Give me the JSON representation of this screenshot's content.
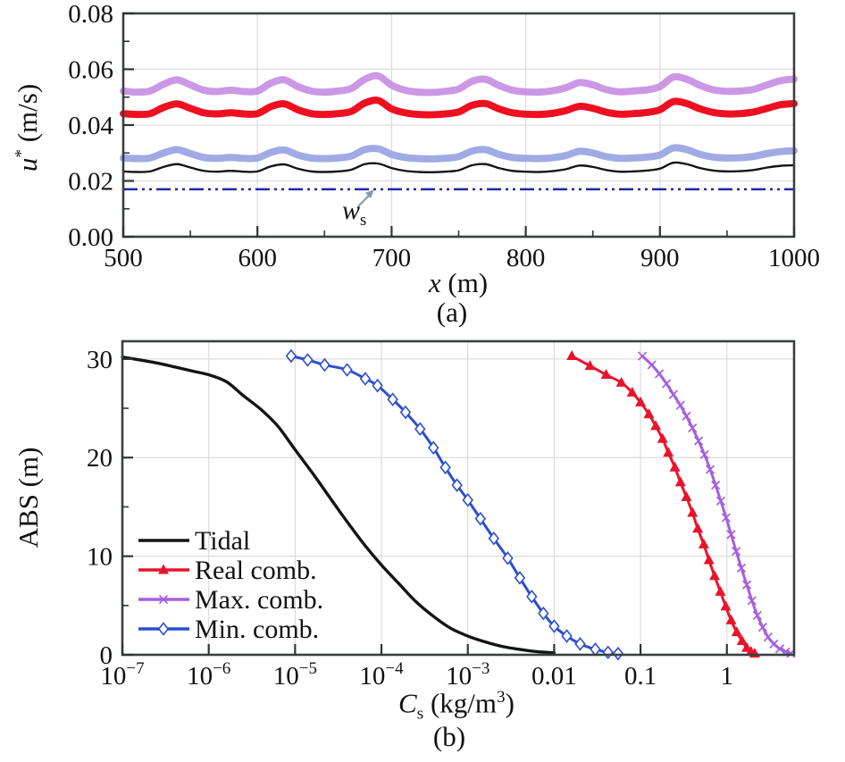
{
  "figure": {
    "background": "#ffffff",
    "panel_a": {
      "caption": "(a)",
      "ylabel": {
        "sym": "u",
        "sup": "*",
        "unit": " (m/s)"
      },
      "xlabel": {
        "sym": "x",
        "unit": " (m)"
      },
      "annotation": {
        "sym": "w",
        "sub": "s"
      }
    },
    "panel_b": {
      "caption": "(b)",
      "ylabel": {
        "text": "ABS (m)"
      },
      "xlabel": {
        "sym": "C",
        "sub": "s",
        "unit_pre": " (kg/m",
        "unit_sup": "3",
        "unit_post": ")"
      }
    }
  },
  "chart_data": [
    {
      "id": "a",
      "type": "line",
      "xscale": "linear",
      "xlabel": "x (m)",
      "ylabel": "u* (m/s)",
      "caption": "(a)",
      "xlim": [
        500,
        1000
      ],
      "ylim": [
        0,
        0.08
      ],
      "xticks": [
        500,
        600,
        700,
        800,
        900,
        1000
      ],
      "xtick_labels": [
        "500",
        "600",
        "700",
        "800",
        "900",
        "1000"
      ],
      "xminor": [
        550,
        650,
        750,
        850,
        950
      ],
      "yticks": [
        0,
        0.02,
        0.04,
        0.06,
        0.08
      ],
      "ytick_labels": [
        "0.00",
        "0.02",
        "0.04",
        "0.06",
        "0.08"
      ],
      "yminor": [
        0.01,
        0.03,
        0.05,
        0.07
      ],
      "grid": true,
      "x": {
        "start": 500,
        "step": 10,
        "count": 51
      },
      "series": [
        {
          "name": "Max. comb.",
          "color": "#c58ae3",
          "opacity": 0.88,
          "line_width": 8,
          "marker": "none",
          "values": [
            0.0522,
            0.0518,
            0.0522,
            0.0546,
            0.0562,
            0.0544,
            0.0525,
            0.052,
            0.0525,
            0.052,
            0.0522,
            0.055,
            0.0562,
            0.0538,
            0.0522,
            0.0518,
            0.0522,
            0.0531,
            0.0564,
            0.0576,
            0.0543,
            0.0525,
            0.0518,
            0.0517,
            0.0521,
            0.0529,
            0.0557,
            0.0564,
            0.0542,
            0.0525,
            0.0519,
            0.0518,
            0.0523,
            0.0534,
            0.0552,
            0.0544,
            0.0527,
            0.0519,
            0.0522,
            0.0526,
            0.0538,
            0.0572,
            0.0564,
            0.0542,
            0.0526,
            0.0521,
            0.0522,
            0.0528,
            0.0544,
            0.0559,
            0.0565
          ]
        },
        {
          "name": "Real comb.",
          "color": "#ee1021",
          "opacity": 1,
          "line_width": 8,
          "marker": "none",
          "values": [
            0.0441,
            0.0438,
            0.0441,
            0.0463,
            0.0476,
            0.046,
            0.0444,
            0.044,
            0.0444,
            0.044,
            0.0441,
            0.0466,
            0.0476,
            0.0455,
            0.0441,
            0.0438,
            0.0441,
            0.0449,
            0.0479,
            0.0488,
            0.0458,
            0.0444,
            0.0438,
            0.0437,
            0.044,
            0.0447,
            0.0471,
            0.0477,
            0.0458,
            0.0444,
            0.0439,
            0.0438,
            0.0442,
            0.0452,
            0.0467,
            0.046,
            0.0446,
            0.0439,
            0.0441,
            0.0445,
            0.0455,
            0.0484,
            0.0477,
            0.0458,
            0.0445,
            0.044,
            0.0441,
            0.0447,
            0.046,
            0.0473,
            0.0477
          ]
        },
        {
          "name": "Min. comb.",
          "color": "#98a3e2",
          "opacity": 0.92,
          "line_width": 8,
          "marker": "none",
          "values": [
            0.0282,
            0.028,
            0.0282,
            0.03,
            0.0312,
            0.0298,
            0.0284,
            0.0281,
            0.0284,
            0.0281,
            0.0282,
            0.0302,
            0.0311,
            0.0293,
            0.0282,
            0.028,
            0.0282,
            0.0289,
            0.0312,
            0.0315,
            0.0295,
            0.0284,
            0.028,
            0.0279,
            0.0281,
            0.0287,
            0.0307,
            0.0312,
            0.0295,
            0.0284,
            0.0281,
            0.028,
            0.0283,
            0.0291,
            0.0306,
            0.03,
            0.0287,
            0.0281,
            0.0282,
            0.0285,
            0.0293,
            0.0318,
            0.0312,
            0.0295,
            0.0285,
            0.0282,
            0.0283,
            0.0288,
            0.0298,
            0.0305,
            0.0308
          ]
        },
        {
          "name": "Tidal",
          "color": "#141414",
          "opacity": 1,
          "line_width": 2.4,
          "marker": "none",
          "values": [
            0.0234,
            0.0232,
            0.0234,
            0.025,
            0.026,
            0.0248,
            0.0236,
            0.0233,
            0.0236,
            0.0233,
            0.0234,
            0.0252,
            0.0259,
            0.0244,
            0.0234,
            0.0232,
            0.0234,
            0.024,
            0.026,
            0.0262,
            0.0246,
            0.0236,
            0.0232,
            0.0231,
            0.0233,
            0.0238,
            0.0256,
            0.026,
            0.0246,
            0.0236,
            0.0233,
            0.0232,
            0.0235,
            0.0242,
            0.0255,
            0.025,
            0.0239,
            0.0233,
            0.0234,
            0.0237,
            0.0244,
            0.0265,
            0.026,
            0.0246,
            0.0237,
            0.0234,
            0.0235,
            0.0239,
            0.0248,
            0.0254,
            0.0256
          ]
        }
      ],
      "refline": {
        "name": "ws",
        "value": 0.017,
        "color": "#2424ad",
        "dash": "dash-dot-dot"
      }
    },
    {
      "id": "b",
      "type": "line",
      "xscale": "log",
      "xlabel": "Cs (kg/m3)",
      "ylabel": "ABS (m)",
      "caption": "(b)",
      "xlim": [
        1e-07,
        6
      ],
      "ylim": [
        0,
        31.8
      ],
      "xticks": [
        1e-07,
        1e-06,
        1e-05,
        0.0001,
        0.001,
        0.01,
        0.1,
        1
      ],
      "xtick_labels": [
        "10^−7",
        "10^−6",
        "10^−5",
        "10^−4",
        "10^−3",
        "0.01",
        "0.1",
        "1"
      ],
      "yticks": [
        0,
        10,
        20,
        30
      ],
      "ytick_labels": [
        "0",
        "10",
        "20",
        "30"
      ],
      "yminor": [
        5,
        15,
        25
      ],
      "grid": true,
      "legend": {
        "position": "lower-left",
        "items": [
          "Tidal",
          "Real comb.",
          "Max. comb.",
          "Min. comb."
        ]
      },
      "series": [
        {
          "name": "Tidal",
          "color": "#141414",
          "line_width": 3.4,
          "marker": "none",
          "points": [
            [
              1e-07,
              30.2
            ],
            [
              1.6e-07,
              29.9
            ],
            [
              2.5e-07,
              29.6
            ],
            [
              4e-07,
              29.2
            ],
            [
              6.3e-07,
              28.8
            ],
            [
              1e-06,
              28.4
            ],
            [
              1.6e-06,
              27.7
            ],
            [
              2.5e-06,
              26.3
            ],
            [
              4e-06,
              24.9
            ],
            [
              6.3e-06,
              23.2
            ],
            [
              1e-05,
              20.8
            ],
            [
              1.6e-05,
              18.4
            ],
            [
              2.5e-05,
              16.0
            ],
            [
              4e-05,
              13.5
            ],
            [
              6.3e-05,
              11.2
            ],
            [
              0.0001,
              9.1
            ],
            [
              0.00016,
              7.2
            ],
            [
              0.00025,
              5.4
            ],
            [
              0.0004,
              3.9
            ],
            [
              0.00063,
              2.7
            ],
            [
              0.001,
              1.9
            ],
            [
              0.0016,
              1.3
            ],
            [
              0.0025,
              0.85
            ],
            [
              0.004,
              0.55
            ],
            [
              0.0063,
              0.32
            ],
            [
              0.01,
              0.2
            ]
          ]
        },
        {
          "name": "Real comb.",
          "color": "#e8142b",
          "line_width": 3,
          "marker": "triangle",
          "points": [
            [
              0.016,
              30.3
            ],
            [
              0.026,
              29.3
            ],
            [
              0.04,
              28.4
            ],
            [
              0.06,
              27.6
            ],
            [
              0.08,
              26.6
            ],
            [
              0.1,
              25.6
            ],
            [
              0.125,
              24.4
            ],
            [
              0.15,
              23.2
            ],
            [
              0.18,
              21.9
            ],
            [
              0.21,
              20.5
            ],
            [
              0.25,
              19.0
            ],
            [
              0.29,
              17.5
            ],
            [
              0.34,
              16.0
            ],
            [
              0.4,
              14.4
            ],
            [
              0.46,
              12.8
            ],
            [
              0.54,
              11.2
            ],
            [
              0.62,
              9.6
            ],
            [
              0.72,
              8.0
            ],
            [
              0.84,
              6.4
            ],
            [
              0.97,
              4.9
            ],
            [
              1.12,
              3.5
            ],
            [
              1.3,
              2.3
            ],
            [
              1.5,
              1.4
            ],
            [
              1.7,
              0.7
            ],
            [
              1.9,
              0.32
            ],
            [
              2.1,
              0.12
            ]
          ]
        },
        {
          "name": "Max. comb.",
          "color": "#a55ee0",
          "line_width": 3,
          "marker": "x",
          "points": [
            [
              0.105,
              30.3
            ],
            [
              0.135,
              29.4
            ],
            [
              0.165,
              28.5
            ],
            [
              0.2,
              27.5
            ],
            [
              0.24,
              26.4
            ],
            [
              0.29,
              25.3
            ],
            [
              0.34,
              24.2
            ],
            [
              0.4,
              23.0
            ],
            [
              0.47,
              21.7
            ],
            [
              0.55,
              20.3
            ],
            [
              0.64,
              18.8
            ],
            [
              0.74,
              17.2
            ],
            [
              0.85,
              15.6
            ],
            [
              0.98,
              13.9
            ],
            [
              1.12,
              12.2
            ],
            [
              1.28,
              10.5
            ],
            [
              1.47,
              8.8
            ],
            [
              1.7,
              7.1
            ],
            [
              1.95,
              5.5
            ],
            [
              2.25,
              4.0
            ],
            [
              2.6,
              2.8
            ],
            [
              3.0,
              1.8
            ],
            [
              3.5,
              1.1
            ],
            [
              4.1,
              0.6
            ],
            [
              4.8,
              0.3
            ],
            [
              5.5,
              0.15
            ]
          ]
        },
        {
          "name": "Min. comb.",
          "color": "#2c4ed2",
          "line_width": 3,
          "marker": "diamond",
          "points": [
            [
              9e-06,
              30.3
            ],
            [
              1.4e-05,
              29.9
            ],
            [
              2.2e-05,
              29.4
            ],
            [
              4e-05,
              28.9
            ],
            [
              6.5e-05,
              28.0
            ],
            [
              9e-05,
              27.3
            ],
            [
              0.000135,
              25.9
            ],
            [
              0.00019,
              24.6
            ],
            [
              0.00028,
              22.9
            ],
            [
              0.0004,
              21.0
            ],
            [
              0.00055,
              19.0
            ],
            [
              0.00075,
              17.2
            ],
            [
              0.001,
              15.7
            ],
            [
              0.0014,
              13.8
            ],
            [
              0.002,
              11.8
            ],
            [
              0.0029,
              9.8
            ],
            [
              0.004,
              7.8
            ],
            [
              0.0055,
              5.9
            ],
            [
              0.0075,
              4.2
            ],
            [
              0.01,
              2.9
            ],
            [
              0.014,
              1.9
            ],
            [
              0.02,
              1.1
            ],
            [
              0.03,
              0.55
            ],
            [
              0.042,
              0.25
            ],
            [
              0.055,
              0.12
            ]
          ]
        }
      ]
    }
  ],
  "style": {
    "grid_color": "#dcdcdc",
    "box_color": "#3a4040",
    "tick_color": "#2f3435",
    "arrow_color": "#8a96a8",
    "text_color": "#111111"
  }
}
